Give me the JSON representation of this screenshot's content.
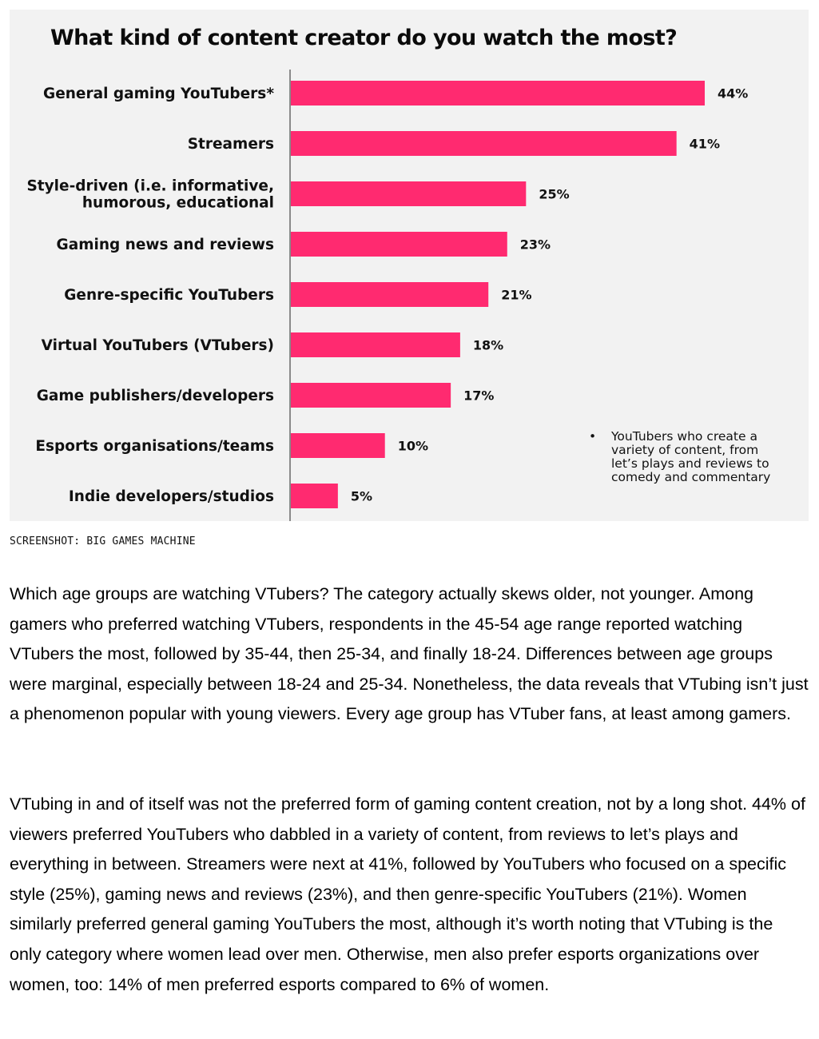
{
  "chart_data": {
    "type": "bar",
    "orientation": "horizontal",
    "title": "What kind of content creator do you watch the most?",
    "xlabel": "",
    "ylabel": "",
    "xlim": [
      0,
      44
    ],
    "grid": false,
    "bar_color": "#FF2A70",
    "categories": [
      "General gaming YouTubers*",
      "Streamers",
      "Style-driven (i.e. informative, humorous, educational",
      "Gaming news and reviews",
      "Genre-specific YouTubers",
      "Virtual YouTubers (VTubers)",
      "Game publishers/developers",
      "Esports organisations/teams",
      "Indie developers/studios"
    ],
    "category_lines": [
      [
        "General gaming YouTubers*"
      ],
      [
        "Streamers"
      ],
      [
        "Style-driven (i.e. informative,",
        "humorous, educational"
      ],
      [
        "Gaming news and reviews"
      ],
      [
        "Genre-specific YouTubers"
      ],
      [
        "Virtual YouTubers (VTubers)"
      ],
      [
        "Game publishers/developers"
      ],
      [
        "Esports organisations/teams"
      ],
      [
        "Indie developers/studios"
      ]
    ],
    "values": [
      44,
      41,
      25,
      23,
      21,
      18,
      17,
      10,
      5
    ],
    "value_labels": [
      "44%",
      "41%",
      "25%",
      "23%",
      "21%",
      "18%",
      "17%",
      "10%",
      "5%"
    ],
    "annotations": [
      {
        "bullet": "•",
        "text": "YouTubers who create a variety of content, from let’s plays and reviews to comedy and commentary"
      }
    ]
  },
  "caption": "SCREENSHOT: BIG GAMES MACHINE",
  "article": {
    "paragraphs": [
      "Which age groups are watching VTubers? The category actually skews older, not younger. Among gamers who preferred watching VTubers, respondents in the 45-54 age range reported watching VTubers the most, followed by 35-44, then 25-34, and finally 18-24. Differences between age groups were marginal, especially between 18-24 and 25-34. Nonetheless, the data reveals that VTubing isn’t just a phenomenon popular with young viewers. Every age group has VTuber fans, at least among gamers.",
      "VTubing in and of itself was not the preferred form of gaming content creation, not by a long shot. 44% of viewers preferred YouTubers who dabbled in a variety of content, from reviews to let’s plays and everything in between. Streamers were next at 41%, followed by YouTubers who focused on a specific style (25%), gaming news and reviews (23%), and then genre-specific YouTubers (21%). Women similarly preferred general gaming YouTubers the most, although it’s worth noting that VTubing is the only category where women lead over men. Otherwise, men also prefer esports organizations over women, too: 14% of men preferred esports compared to 6% of women."
    ]
  }
}
